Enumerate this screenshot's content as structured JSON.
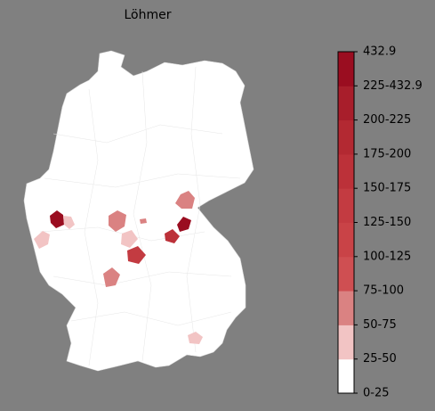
{
  "title": "Löhmer",
  "colorbar": {
    "labels": [
      "0-25",
      "25-50",
      "50-75",
      "75-100",
      "100-125",
      "125-150",
      "150-175",
      "175-200",
      "200-225",
      "225-432.9",
      "432.9"
    ],
    "colors": [
      "#ffffff",
      "#f2c4c4",
      "#da8282",
      "#cf4f52",
      "#c94347",
      "#c33b41",
      "#bc3139",
      "#b32932",
      "#a81e2b",
      "#9a0d20"
    ]
  }
}
